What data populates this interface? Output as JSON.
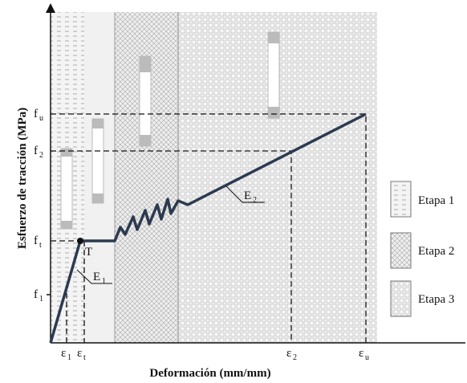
{
  "axes": {
    "y_label": "Esfuerzo de tracción (MPa)",
    "x_label": "Deformación (mm/mm)",
    "y_ticks": [
      {
        "base": "f",
        "sub": "u"
      },
      {
        "base": "f",
        "sub": "2"
      },
      {
        "base": "f",
        "sub": "t"
      },
      {
        "base": "f",
        "sub": "1"
      }
    ],
    "x_ticks": [
      {
        "base": "ε",
        "sub": "1"
      },
      {
        "base": "ε",
        "sub": "t"
      },
      {
        "base": "ε",
        "sub": "2"
      },
      {
        "base": "ε",
        "sub": "u"
      }
    ]
  },
  "point_label": "T",
  "moduli": [
    {
      "base": "E",
      "sub": "1"
    },
    {
      "base": "E",
      "sub": "2"
    }
  ],
  "legend": [
    "Etapa 1",
    "Etapa 2",
    "Etapa 3"
  ]
}
